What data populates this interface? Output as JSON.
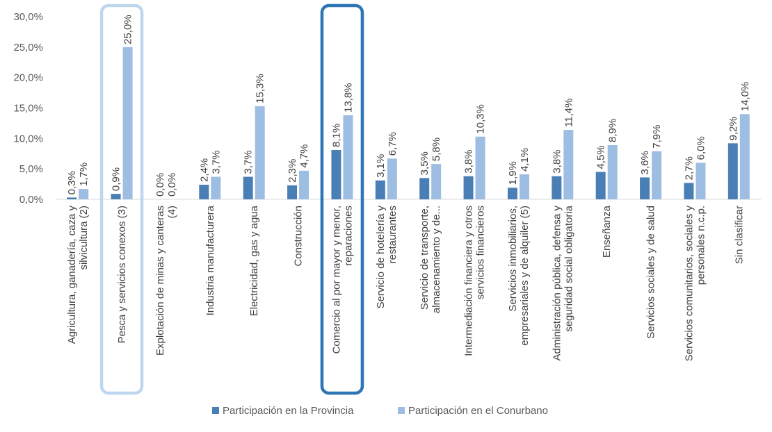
{
  "chart_data": {
    "type": "bar",
    "title": "",
    "xlabel": "",
    "ylabel": "",
    "ylim": [
      0,
      30
    ],
    "y_ticks": [
      "0,0%",
      "5,0%",
      "10,0%",
      "15,0%",
      "20,0%",
      "25,0%",
      "30,0%"
    ],
    "grid": false,
    "legend_position": "bottom",
    "categories": [
      [
        "Agricultura, ganadería, caza y",
        "silvicultura (2)"
      ],
      [
        "Pesca y servicios conexos (3)"
      ],
      [
        "Explotación de minas y canteras",
        "(4)"
      ],
      [
        "Industria manufacturera"
      ],
      [
        "Electricidad, gas y agua"
      ],
      [
        "Construcción"
      ],
      [
        "Comercio al por mayor y menor,",
        "reparaciones"
      ],
      [
        "Servicio de hotelería y",
        "restaurantes"
      ],
      [
        "Servicio de transporte,",
        "almacenamiento y de..."
      ],
      [
        "Intermediación financiera y otros",
        "servicios financieros"
      ],
      [
        "Servicios inmobiliarios,",
        "empresariales y de alquiler (5)"
      ],
      [
        "Administración pública, defensa y",
        "seguridad social obligatoria"
      ],
      [
        "Enseñanza"
      ],
      [
        "Servicios sociales y de salud"
      ],
      [
        "Servicios comunitarios, sociales y",
        "personales n.c.p."
      ],
      [
        "Sin clasificar"
      ]
    ],
    "series": [
      {
        "name": "Participación en la Provincia",
        "color": "#4a7fb6",
        "values": [
          0.3,
          0.9,
          0.0,
          2.4,
          3.7,
          2.3,
          8.1,
          3.1,
          3.5,
          3.8,
          1.9,
          3.8,
          4.5,
          3.6,
          2.7,
          9.2
        ],
        "labels": [
          "0,3%",
          "0,9%",
          "0,0%",
          "2,4%",
          "3,7%",
          "2,3%",
          "8,1%",
          "3,1%",
          "3,5%",
          "3,8%",
          "1,9%",
          "3,8%",
          "4,5%",
          "3,6%",
          "2,7%",
          "9,2%"
        ]
      },
      {
        "name": "Participación en el Conurbano",
        "color": "#9ebde3",
        "values": [
          1.7,
          25.0,
          0.0,
          3.7,
          15.3,
          4.7,
          13.8,
          6.7,
          5.8,
          10.3,
          4.1,
          11.4,
          8.9,
          7.9,
          6.0,
          14.0
        ],
        "labels": [
          "1,7%",
          "25,0%",
          "0,0%",
          "3,7%",
          "15,3%",
          "4,7%",
          "13,8%",
          "6,7%",
          "5,8%",
          "10,3%",
          "4,1%",
          "11,4%",
          "8,9%",
          "7,9%",
          "6,0%",
          "14,0%"
        ]
      }
    ],
    "highlights": [
      {
        "category_index": 1,
        "color": "#bdd7ee"
      },
      {
        "category_index": 6,
        "color": "#2e75b6"
      }
    ]
  }
}
